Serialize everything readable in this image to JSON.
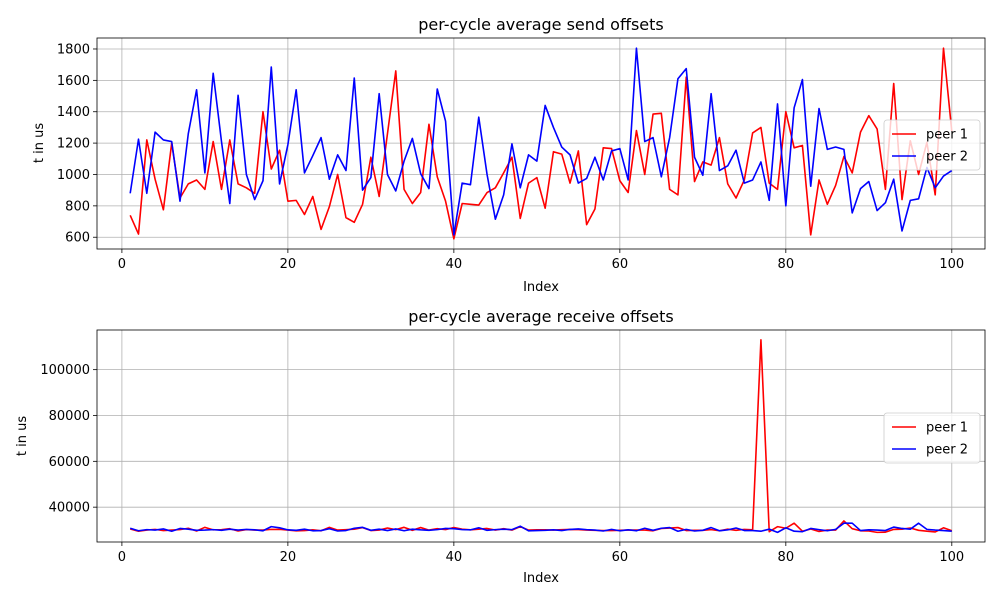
{
  "chart_data": [
    {
      "type": "line",
      "title": "per-cycle average send offsets",
      "xlabel": "Index",
      "ylabel": "t in us",
      "xlim": [
        -3,
        104
      ],
      "ylim": [
        525,
        1870
      ],
      "xticks": [
        0,
        20,
        40,
        60,
        80,
        100
      ],
      "yticks": [
        600,
        800,
        1000,
        1200,
        1400,
        1600,
        1800
      ],
      "grid": true,
      "legend_position": "right",
      "series": [
        {
          "name": "peer 1",
          "color": "#ff0000",
          "x": [
            1,
            2,
            3,
            4,
            5,
            6,
            7,
            8,
            9,
            10,
            11,
            12,
            13,
            14,
            15,
            16,
            17,
            18,
            19,
            20,
            21,
            22,
            23,
            24,
            25,
            26,
            27,
            28,
            29,
            30,
            31,
            32,
            33,
            34,
            35,
            36,
            37,
            38,
            39,
            40,
            41,
            42,
            43,
            44,
            45,
            46,
            47,
            48,
            49,
            50,
            51,
            52,
            53,
            54,
            55,
            56,
            57,
            58,
            59,
            60,
            61,
            62,
            63,
            64,
            65,
            66,
            67,
            68,
            69,
            70,
            71,
            72,
            73,
            74,
            75,
            76,
            77,
            78,
            79,
            80,
            81,
            82,
            83,
            84,
            85,
            86,
            87,
            88,
            89,
            90,
            91,
            92,
            93,
            94,
            95,
            96,
            97,
            98,
            99,
            100
          ],
          "values": [
            740,
            620,
            1220,
            970,
            775,
            1200,
            850,
            940,
            965,
            905,
            1210,
            905,
            1220,
            940,
            915,
            880,
            1400,
            1035,
            1155,
            830,
            835,
            745,
            860,
            650,
            795,
            1000,
            725,
            695,
            810,
            1110,
            860,
            1260,
            1660,
            905,
            815,
            885,
            1320,
            985,
            830,
            590,
            815,
            810,
            805,
            885,
            915,
            1010,
            1110,
            720,
            945,
            980,
            785,
            1145,
            1130,
            945,
            1150,
            680,
            780,
            1170,
            1165,
            960,
            885,
            1280,
            1000,
            1385,
            1390,
            905,
            870,
            1620,
            955,
            1080,
            1060,
            1235,
            940,
            850,
            965,
            1265,
            1300,
            945,
            905,
            1400,
            1170,
            1185,
            615,
            965,
            810,
            930,
            1115,
            1010,
            1270,
            1375,
            1290,
            905,
            1580,
            840,
            1215,
            1000,
            1205,
            870,
            1805,
            1275
          ]
        },
        {
          "name": "peer 2",
          "color": "#0000ff",
          "x": [
            1,
            2,
            3,
            4,
            5,
            6,
            7,
            8,
            9,
            10,
            11,
            12,
            13,
            14,
            15,
            16,
            17,
            18,
            19,
            20,
            21,
            22,
            23,
            24,
            25,
            26,
            27,
            28,
            29,
            30,
            31,
            32,
            33,
            34,
            35,
            36,
            37,
            38,
            39,
            40,
            41,
            42,
            43,
            44,
            45,
            46,
            47,
            48,
            49,
            50,
            51,
            52,
            53,
            54,
            55,
            56,
            57,
            58,
            59,
            60,
            61,
            62,
            63,
            64,
            65,
            66,
            67,
            68,
            69,
            70,
            71,
            72,
            73,
            74,
            75,
            76,
            77,
            78,
            79,
            80,
            81,
            82,
            83,
            84,
            85,
            86,
            87,
            88,
            89,
            90,
            91,
            92,
            93,
            94,
            95,
            96,
            97,
            98,
            99,
            100
          ],
          "values": [
            880,
            1225,
            880,
            1270,
            1220,
            1210,
            830,
            1260,
            1540,
            1010,
            1645,
            1210,
            815,
            1505,
            1000,
            840,
            960,
            1685,
            940,
            1190,
            1540,
            1010,
            1120,
            1235,
            970,
            1125,
            1025,
            1615,
            900,
            980,
            1515,
            1000,
            895,
            1085,
            1230,
            1005,
            910,
            1545,
            1340,
            615,
            945,
            935,
            1365,
            1000,
            715,
            870,
            1195,
            915,
            1125,
            1085,
            1440,
            1300,
            1175,
            1125,
            945,
            975,
            1110,
            965,
            1150,
            1165,
            965,
            1805,
            1210,
            1235,
            985,
            1235,
            1610,
            1675,
            1110,
            995,
            1515,
            1025,
            1055,
            1155,
            945,
            965,
            1080,
            835,
            1450,
            800,
            1425,
            1605,
            925,
            1420,
            1160,
            1175,
            1160,
            755,
            910,
            955,
            770,
            820,
            970,
            640,
            835,
            845,
            1045,
            915,
            990,
            1025
          ]
        }
      ]
    },
    {
      "type": "line",
      "title": "per-cycle average receive offsets",
      "xlabel": "Index",
      "ylabel": "t in us",
      "xlim": [
        -3,
        104
      ],
      "ylim": [
        24800,
        117300
      ],
      "xticks": [
        0,
        20,
        40,
        60,
        80,
        100
      ],
      "yticks": [
        40000,
        60000,
        80000,
        100000
      ],
      "grid": true,
      "legend_position": "right",
      "series": [
        {
          "name": "peer 1",
          "color": "#ff0000",
          "x": [
            1,
            2,
            3,
            4,
            5,
            6,
            7,
            8,
            9,
            10,
            11,
            12,
            13,
            14,
            15,
            16,
            17,
            18,
            19,
            20,
            21,
            22,
            23,
            24,
            25,
            26,
            27,
            28,
            29,
            30,
            31,
            32,
            33,
            34,
            35,
            36,
            37,
            38,
            39,
            40,
            41,
            42,
            43,
            44,
            45,
            46,
            47,
            48,
            49,
            50,
            51,
            52,
            53,
            54,
            55,
            56,
            57,
            58,
            59,
            60,
            61,
            62,
            63,
            64,
            65,
            66,
            67,
            68,
            69,
            70,
            71,
            72,
            73,
            74,
            75,
            76,
            77,
            78,
            79,
            80,
            81,
            82,
            83,
            84,
            85,
            86,
            87,
            88,
            89,
            90,
            91,
            92,
            93,
            94,
            95,
            96,
            97,
            98,
            99,
            100
          ],
          "values": [
            30500,
            29500,
            30000,
            30300,
            29800,
            30000,
            30200,
            30800,
            29600,
            31200,
            30100,
            30200,
            30600,
            29600,
            30200,
            30000,
            30000,
            30300,
            30300,
            30000,
            29700,
            29800,
            30100,
            29700,
            31200,
            30000,
            30200,
            30400,
            31100,
            29800,
            30000,
            30900,
            30200,
            31200,
            29900,
            31100,
            30000,
            30600,
            30200,
            31100,
            30400,
            30100,
            30400,
            30700,
            30000,
            30600,
            30000,
            31500,
            30000,
            30100,
            30100,
            30000,
            30200,
            30300,
            30200,
            30000,
            29900,
            29800,
            29800,
            29900,
            30000,
            30000,
            30000,
            29700,
            30700,
            30900,
            31100,
            29800,
            29900,
            29900,
            30200,
            29700,
            30400,
            29900,
            30300,
            30100,
            113000,
            29300,
            31500,
            30800,
            33000,
            29500,
            30500,
            29400,
            30000,
            30000,
            34000,
            30600,
            29700,
            29600,
            29000,
            29100,
            30300,
            30400,
            30900,
            29900,
            29500,
            29200,
            31000,
            29700
          ]
        },
        {
          "name": "peer 2",
          "color": "#0000ff",
          "x": [
            1,
            2,
            3,
            4,
            5,
            6,
            7,
            8,
            9,
            10,
            11,
            12,
            13,
            14,
            15,
            16,
            17,
            18,
            19,
            20,
            21,
            22,
            23,
            24,
            25,
            26,
            27,
            28,
            29,
            30,
            31,
            32,
            33,
            34,
            35,
            36,
            37,
            38,
            39,
            40,
            41,
            42,
            43,
            44,
            45,
            46,
            47,
            48,
            49,
            50,
            51,
            52,
            53,
            54,
            55,
            56,
            57,
            58,
            59,
            60,
            61,
            62,
            63,
            64,
            65,
            66,
            67,
            68,
            69,
            70,
            71,
            72,
            73,
            74,
            75,
            76,
            77,
            78,
            79,
            80,
            81,
            82,
            83,
            84,
            85,
            86,
            87,
            88,
            89,
            90,
            91,
            92,
            93,
            94,
            95,
            96,
            97,
            98,
            99,
            100
          ],
          "values": [
            30800,
            29700,
            30200,
            30000,
            30500,
            29500,
            30700,
            30400,
            29900,
            30000,
            30200,
            29900,
            30400,
            30000,
            30300,
            30100,
            29700,
            31500,
            31000,
            30100,
            29900,
            30400,
            29700,
            29800,
            30600,
            29600,
            29800,
            30800,
            31200,
            29900,
            30400,
            29800,
            30500,
            29700,
            30400,
            30100,
            29900,
            30200,
            30700,
            30600,
            30200,
            30100,
            31000,
            29900,
            30200,
            30400,
            30200,
            31700,
            29700,
            29800,
            29900,
            30100,
            29800,
            30300,
            30500,
            30200,
            30000,
            29600,
            30300,
            29700,
            30100,
            29700,
            30800,
            29900,
            30800,
            31100,
            29500,
            30300,
            29600,
            29900,
            31100,
            29700,
            30100,
            30900,
            29800,
            29800,
            29500,
            30400,
            29000,
            31000,
            29500,
            29300,
            30700,
            30200,
            29700,
            30300,
            33000,
            33000,
            29800,
            30100,
            30000,
            29800,
            31300,
            30700,
            30400,
            33000,
            30300,
            30000,
            29800,
            29500
          ]
        }
      ]
    }
  ]
}
